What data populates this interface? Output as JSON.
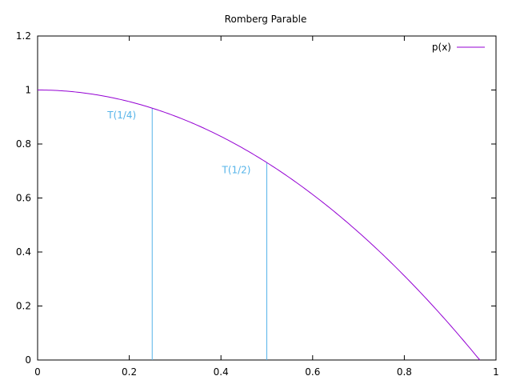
{
  "chart_data": {
    "type": "line",
    "title": "Romberg Parable",
    "xlabel": "",
    "ylabel": "",
    "xlim": [
      0,
      1
    ],
    "ylim": [
      0,
      1.2
    ],
    "x_ticks": [
      "0",
      "0.2",
      "0.4",
      "0.6",
      "0.8",
      "1"
    ],
    "y_ticks": [
      "0",
      "0.2",
      "0.4",
      "0.6",
      "0.8",
      "1",
      "1.2"
    ],
    "grid": false,
    "legend_position": "top-right",
    "series": [
      {
        "name": "p(x)",
        "color": "#9400d3",
        "function": "1 - 1.075*x^2",
        "x_range": [
          0,
          0.965
        ]
      }
    ],
    "annotations": [
      {
        "label": "T(1/4)",
        "x": 0.25,
        "y_top": 0.933,
        "color": "#56b4e9"
      },
      {
        "label": "T(1/2)",
        "x": 0.5,
        "y_top": 0.731,
        "color": "#56b4e9"
      }
    ]
  }
}
